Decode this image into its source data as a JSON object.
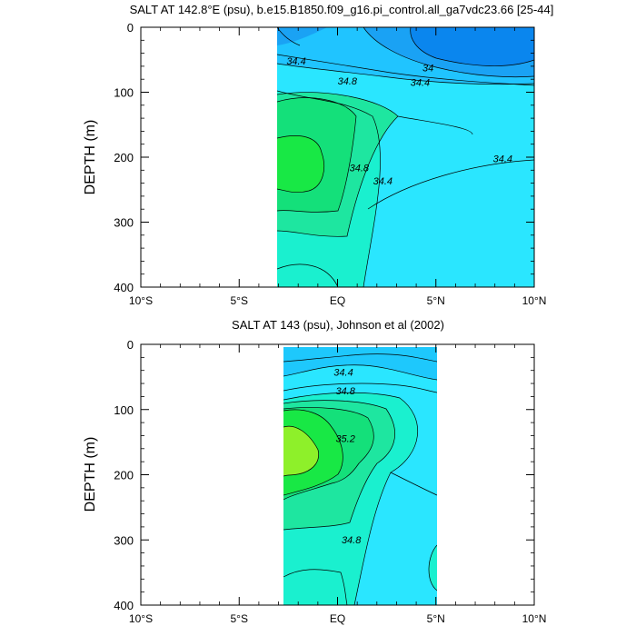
{
  "chart_data": [
    {
      "type": "contour",
      "title": "SALT AT 142.8°E (psu), b.e15.B1850.f09_g16.pi_control.all_ga7vdc23.66 [25-44]",
      "ylabel": "DEPTH (m)",
      "xlabel": "",
      "xlim": [
        -10,
        10
      ],
      "ylim": [
        400,
        0
      ],
      "data_extent": {
        "x": [
          -3,
          10
        ],
        "y": [
          0,
          400
        ]
      },
      "x_ticks": [
        {
          "value": -10,
          "label": "10°S"
        },
        {
          "value": -5,
          "label": "5°S"
        },
        {
          "value": 0,
          "label": "EQ"
        },
        {
          "value": 5,
          "label": "5°N"
        },
        {
          "value": 10,
          "label": "10°N"
        }
      ],
      "y_ticks": [
        {
          "value": 0,
          "label": "0"
        },
        {
          "value": 100,
          "label": "100"
        },
        {
          "value": 200,
          "label": "200"
        },
        {
          "value": 300,
          "label": "300"
        },
        {
          "value": 400,
          "label": "400"
        }
      ],
      "contour_labels": [
        {
          "text": "34.4",
          "x": -2.1,
          "y": 57
        },
        {
          "text": "34",
          "x": 4.6,
          "y": 68
        },
        {
          "text": "34.4",
          "x": 4.2,
          "y": 90
        },
        {
          "text": "34.8",
          "x": 0.5,
          "y": 88
        },
        {
          "text": "34.8",
          "x": 1.1,
          "y": 222
        },
        {
          "text": "34.4",
          "x": 2.3,
          "y": 242
        },
        {
          "text": "34.4",
          "x": 8.4,
          "y": 208
        }
      ],
      "color_levels": [
        {
          "range": "< 33.6",
          "color": "#0a86ee"
        },
        {
          "range": "33.6–34.0",
          "color": "#1aa2f4"
        },
        {
          "range": "34.0–34.4",
          "color": "#20c4ff"
        },
        {
          "range": "34.4–34.6",
          "color": "#2ae6ff"
        },
        {
          "range": "34.6–34.8",
          "color": "#1af0cf"
        },
        {
          "range": "34.8–35.0",
          "color": "#1ee6a0"
        },
        {
          "range": "35.0–35.2",
          "color": "#14e07a"
        },
        {
          "range": "> 35.2",
          "color": "#18e845"
        }
      ]
    },
    {
      "type": "contour",
      "title": "SALT AT 143 (psu), Johnson et al (2002)",
      "ylabel": "DEPTH (m)",
      "xlabel": "",
      "xlim": [
        -10,
        10
      ],
      "ylim": [
        400,
        0
      ],
      "data_extent": {
        "x": [
          -2.7,
          5
        ],
        "y": [
          5,
          400
        ]
      },
      "x_ticks": [
        {
          "value": -10,
          "label": "10°S"
        },
        {
          "value": -5,
          "label": "5°S"
        },
        {
          "value": 0,
          "label": "EQ"
        },
        {
          "value": 5,
          "label": "5°N"
        },
        {
          "value": 10,
          "label": "10°N"
        }
      ],
      "y_ticks": [
        {
          "value": 0,
          "label": "0"
        },
        {
          "value": 100,
          "label": "100"
        },
        {
          "value": 200,
          "label": "200"
        },
        {
          "value": 300,
          "label": "300"
        },
        {
          "value": 400,
          "label": "400"
        }
      ],
      "contour_labels": [
        {
          "text": "34.4",
          "x": 0.3,
          "y": 48
        },
        {
          "text": "34.8",
          "x": 0.4,
          "y": 77
        },
        {
          "text": "35.2",
          "x": 0.4,
          "y": 150
        },
        {
          "text": "34.8",
          "x": 0.7,
          "y": 305
        }
      ],
      "color_levels": [
        {
          "range": "34.0–34.4",
          "color": "#1ec8fc"
        },
        {
          "range": "34.4–34.6",
          "color": "#2ae6ff"
        },
        {
          "range": "34.6–34.8",
          "color": "#1af0cf"
        },
        {
          "range": "34.8–35.0",
          "color": "#1ee6a0"
        },
        {
          "range": "35.0–35.2",
          "color": "#14e07a"
        },
        {
          "range": "35.2–35.4",
          "color": "#18e845"
        },
        {
          "range": "> 35.4",
          "color": "#8ef02a"
        }
      ]
    }
  ]
}
